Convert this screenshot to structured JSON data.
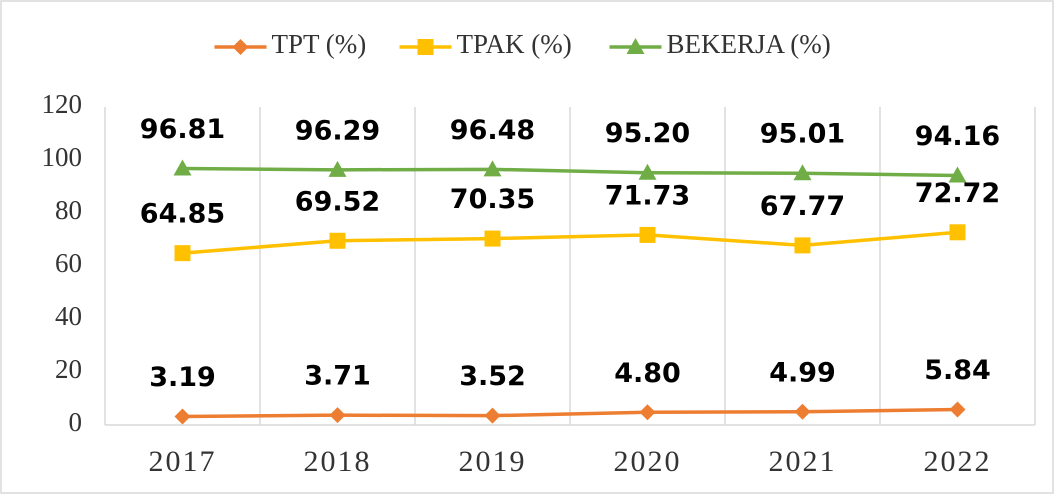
{
  "chart_data": {
    "type": "line",
    "categories": [
      "2017",
      "2018",
      "2019",
      "2020",
      "2021",
      "2022"
    ],
    "series": [
      {
        "name": "TPT (%)",
        "color": "#ed7d31",
        "marker": "diamond",
        "values": [
          3.19,
          3.71,
          3.52,
          4.8,
          4.99,
          5.84
        ],
        "value_labels": [
          "3.19",
          "3.71",
          "3.52",
          "4.80",
          "4.99",
          "5.84"
        ]
      },
      {
        "name": "TPAK (%)",
        "color": "#ffc000",
        "marker": "square",
        "values": [
          64.85,
          69.52,
          70.35,
          71.73,
          67.77,
          72.72
        ],
        "value_labels": [
          "64.85",
          "69.52",
          "70.35",
          "71.73",
          "67.77",
          "72.72"
        ]
      },
      {
        "name": "BEKERJA (%)",
        "color": "#70ad47",
        "marker": "triangle",
        "values": [
          96.81,
          96.29,
          96.48,
          95.2,
          95.01,
          94.16
        ],
        "value_labels": [
          "96.81",
          "96.29",
          "96.48",
          "95.20",
          "95.01",
          "94.16"
        ]
      }
    ],
    "ylim": [
      0,
      120
    ],
    "yticks": [
      0,
      20,
      40,
      60,
      80,
      100,
      120
    ],
    "legend": "top"
  }
}
